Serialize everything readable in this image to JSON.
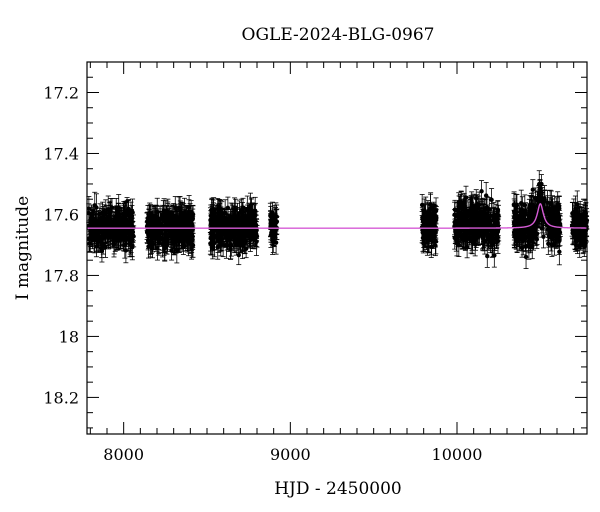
{
  "chart_data": {
    "type": "scatter",
    "title": "OGLE-2024-BLG-0967",
    "xlabel": "HJD - 2450000",
    "ylabel": "I magnitude",
    "xlim": [
      7780,
      10780
    ],
    "ylim": [
      17.1,
      18.32
    ],
    "y_inverted": true,
    "grid": false,
    "legend": "none",
    "xticks": [
      8000,
      9000,
      10000
    ],
    "xtick_labels": [
      "8000",
      "9000",
      "10000"
    ],
    "yticks": [
      17.2,
      17.4,
      17.6,
      17.8,
      18,
      18.2
    ],
    "ytick_labels": [
      "17.2",
      "17.4",
      "17.6",
      "17.8",
      "18",
      "18.2"
    ],
    "series": [
      {
        "marker_color": "#000000",
        "observing_seasons": [
          {
            "x_start": 7790,
            "x_end": 8060,
            "y_mean": 17.645,
            "y_scatter": 0.03,
            "error_bar": 0.035
          },
          {
            "x_start": 8140,
            "x_end": 8420,
            "y_mean": 17.645,
            "y_scatter": 0.03,
            "error_bar": 0.035
          },
          {
            "x_start": 8520,
            "x_end": 8800,
            "y_mean": 17.645,
            "y_scatter": 0.03,
            "error_bar": 0.035
          },
          {
            "x_start": 8880,
            "x_end": 8920,
            "y_mean": 17.645,
            "y_scatter": 0.025,
            "error_bar": 0.035
          },
          {
            "x_start": 9790,
            "x_end": 9880,
            "y_mean": 17.64,
            "y_scatter": 0.03,
            "error_bar": 0.04
          },
          {
            "x_start": 9985,
            "x_end": 10250,
            "y_mean": 17.63,
            "y_scatter": 0.035,
            "error_bar": 0.035
          },
          {
            "x_start": 10340,
            "x_end": 10620,
            "y_mean": 17.635,
            "y_scatter": 0.035,
            "error_bar": 0.035
          },
          {
            "x_start": 10690,
            "x_end": 10780,
            "y_mean": 17.645,
            "y_scatter": 0.03,
            "error_bar": 0.035
          }
        ]
      }
    ],
    "model": {
      "color": "#d65bd6",
      "baseline": 17.645,
      "peak_x": 10500,
      "peak_y": 17.565,
      "width_days": 22
    }
  }
}
